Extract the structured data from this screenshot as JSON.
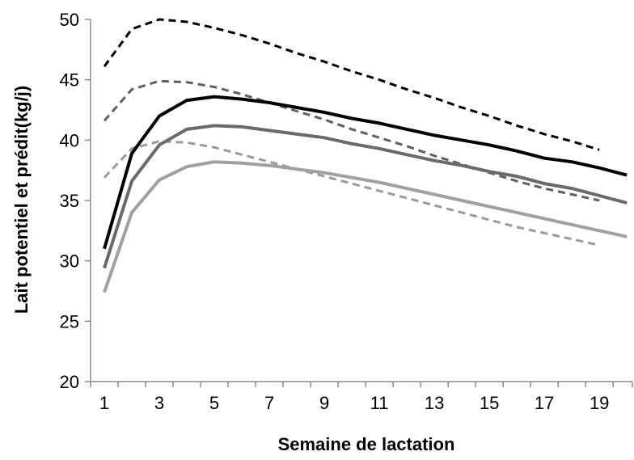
{
  "chart_data": {
    "type": "line",
    "title": "",
    "xlabel": "Semaine de lactation",
    "ylabel": "Lait potentiel et prédit(kg/j)",
    "xlim": [
      0.5,
      20.2
    ],
    "ylim": [
      20,
      50
    ],
    "x_ticks": [
      1,
      3,
      5,
      7,
      9,
      11,
      13,
      15,
      17,
      19
    ],
    "y_ticks": [
      20,
      25,
      30,
      35,
      40,
      45,
      50
    ],
    "grid": false,
    "legend": "none",
    "series": [
      {
        "color": "#000000",
        "style": "dashed",
        "x": [
          1,
          2,
          3,
          4,
          5,
          6,
          7,
          8,
          9,
          10,
          11,
          12,
          13,
          14,
          15,
          16,
          17,
          18,
          19
        ],
        "values": [
          46.1,
          49.2,
          50.0,
          49.8,
          49.3,
          48.7,
          48.0,
          47.2,
          46.5,
          45.7,
          45.0,
          44.2,
          43.5,
          42.7,
          42.0,
          41.2,
          40.5,
          39.9,
          39.2
        ]
      },
      {
        "color": "#5f5f5f",
        "style": "dashed",
        "x": [
          1,
          2,
          3,
          4,
          5,
          6,
          7,
          8,
          9,
          10,
          11,
          12,
          13,
          14,
          15,
          16,
          17,
          18,
          19
        ],
        "values": [
          41.6,
          44.2,
          44.9,
          44.8,
          44.4,
          43.8,
          43.1,
          42.4,
          41.7,
          40.9,
          40.2,
          39.5,
          38.7,
          38.0,
          37.3,
          36.6,
          36.0,
          35.5,
          35.0
        ]
      },
      {
        "color": "#9a9a9a",
        "style": "dashed",
        "x": [
          1,
          2,
          3,
          4,
          5,
          6,
          7,
          8,
          9,
          10,
          11,
          12,
          13,
          14,
          15,
          16,
          17,
          18,
          19
        ],
        "values": [
          36.9,
          39.3,
          39.9,
          39.8,
          39.4,
          38.8,
          38.2,
          37.6,
          37.0,
          36.4,
          35.8,
          35.2,
          34.6,
          34.0,
          33.4,
          32.8,
          32.3,
          31.8,
          31.3
        ]
      },
      {
        "color": "#000000",
        "style": "solid",
        "x": [
          1,
          2,
          3,
          4,
          5,
          6,
          7,
          8,
          9,
          10,
          11,
          12,
          13,
          14,
          15,
          16,
          17,
          18,
          19,
          20
        ],
        "values": [
          31.0,
          38.9,
          42.0,
          43.3,
          43.6,
          43.4,
          43.1,
          42.7,
          42.3,
          41.8,
          41.4,
          40.9,
          40.4,
          40.0,
          39.6,
          39.1,
          38.5,
          38.2,
          37.7,
          37.1
        ]
      },
      {
        "color": "#6a6a6a",
        "style": "solid",
        "x": [
          1,
          2,
          3,
          4,
          5,
          6,
          7,
          8,
          9,
          10,
          11,
          12,
          13,
          14,
          15,
          16,
          17,
          18,
          19,
          20
        ],
        "values": [
          29.4,
          36.6,
          39.6,
          40.9,
          41.2,
          41.1,
          40.8,
          40.5,
          40.2,
          39.7,
          39.3,
          38.8,
          38.3,
          37.9,
          37.4,
          37.0,
          36.4,
          36.0,
          35.4,
          34.8
        ]
      },
      {
        "color": "#a0a0a0",
        "style": "solid",
        "x": [
          1,
          2,
          3,
          4,
          5,
          6,
          7,
          8,
          9,
          10,
          11,
          12,
          13,
          14,
          15,
          16,
          17,
          18,
          19,
          20
        ],
        "values": [
          27.4,
          34.0,
          36.7,
          37.8,
          38.2,
          38.1,
          37.9,
          37.6,
          37.3,
          36.9,
          36.5,
          36.0,
          35.5,
          35.0,
          34.5,
          34.0,
          33.5,
          33.0,
          32.5,
          32.0
        ]
      }
    ]
  }
}
